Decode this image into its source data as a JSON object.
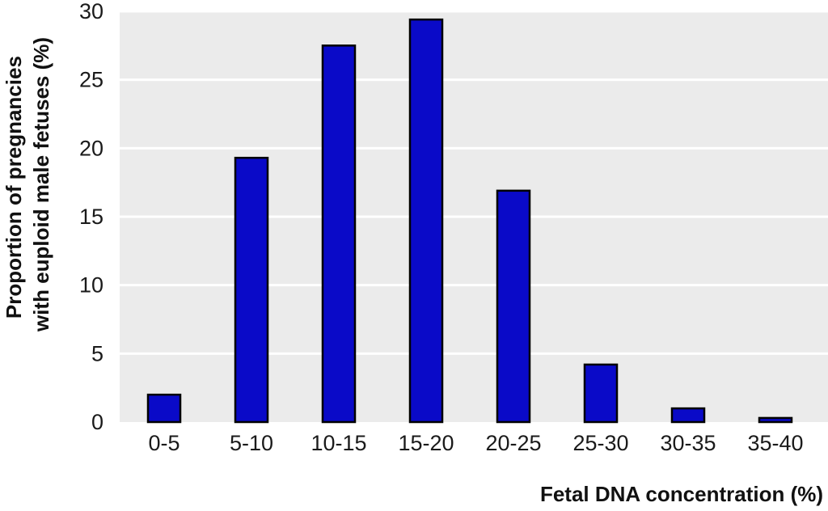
{
  "chart_data": {
    "type": "bar",
    "categories": [
      "0-5",
      "5-10",
      "10-15",
      "15-20",
      "20-25",
      "25-30",
      "30-35",
      "35-40"
    ],
    "values": [
      2.0,
      19.3,
      27.5,
      29.4,
      16.9,
      4.2,
      1.0,
      0.3
    ],
    "xlabel": "Fetal DNA concentration (%)",
    "ylabel_lines": [
      "Proportion of pregnancies",
      "with euploid male fetuses (%)"
    ],
    "ylim": [
      0,
      30
    ],
    "yticks": [
      0,
      5,
      10,
      15,
      20,
      25,
      30
    ],
    "grid": true,
    "bar_color": "#0a0ac8",
    "plot_background": "#ebebeb"
  }
}
